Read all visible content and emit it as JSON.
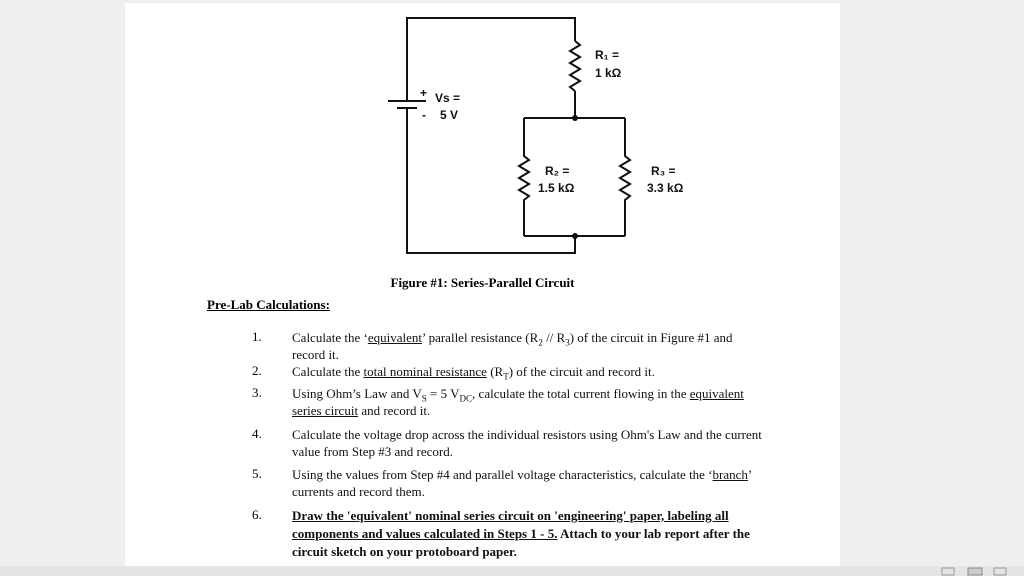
{
  "figure": {
    "r1_name": "R₁ =",
    "r1_value": "1 kΩ",
    "vs_plus": "+",
    "vs_name": "Vs =",
    "vs_minus": "-",
    "vs_value": "5 V",
    "r2_name": "R₂ =",
    "r2_value": "1.5 kΩ",
    "r3_name": "R₃ =",
    "r3_value": "3.3 kΩ",
    "caption": "Figure #1: Series-Parallel Circuit"
  },
  "section": {
    "title": "Pre-Lab Calculations:",
    "items": [
      {
        "number": "1.",
        "parts": [
          "Calculate the ‘",
          "equivalent",
          "’ parallel resistance (R",
          "2",
          " // R",
          "3",
          ") of the circuit in Figure #1 and record it."
        ]
      },
      {
        "number": "2.",
        "parts": [
          "Calculate the ",
          "total nominal resistance",
          " (R",
          "T",
          ") of the circuit and record it."
        ]
      },
      {
        "number": "3.",
        "parts": [
          "Using Ohm’s Law and V",
          "S",
          " = 5 V",
          "DC",
          ", calculate the total current flowing in the ",
          "equivalent series circuit",
          " and record it."
        ]
      },
      {
        "number": "4.",
        "parts": [
          "Calculate the voltage drop across the individual resistors using Ohm's Law and the current value from Step #3 and record."
        ]
      },
      {
        "number": "5.",
        "parts": [
          "Using the values from Step #4 and parallel voltage characteristics, calculate the ‘",
          "branch",
          "’ currents and record them."
        ]
      },
      {
        "number": "6.",
        "parts": [
          "Draw the 'equivalent' nominal series circuit on 'engineering' paper, labeling all components and values calculated in Steps 1 - 5.",
          " Attach to your lab report after the circuit sketch on your protoboard paper."
        ]
      }
    ]
  }
}
